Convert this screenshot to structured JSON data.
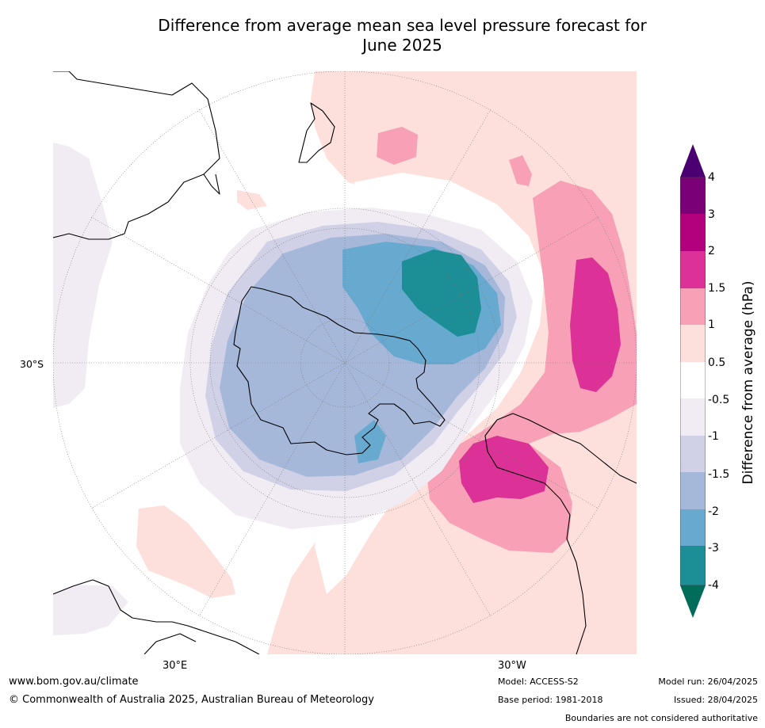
{
  "title_line1": "Difference from average mean sea level pressure forecast for",
  "title_line2": "June 2025",
  "labels": {
    "lat_30s": "30°S",
    "lon_30e": "30°E",
    "lon_30w": "30°W"
  },
  "colorbar": {
    "label": "Difference from average (hPa)",
    "ticks": [
      "4",
      "3",
      "2",
      "1.5",
      "1",
      "0.5",
      "-0.5",
      "-1",
      "-1.5",
      "-2",
      "-3",
      "-4"
    ],
    "bins": [
      {
        "range": "> 4",
        "color": "#4a0070"
      },
      {
        "range": "3 to 4",
        "color": "#7a0078"
      },
      {
        "range": "2 to 3",
        "color": "#b3007d"
      },
      {
        "range": "1.5 to 2",
        "color": "#dc3196"
      },
      {
        "range": "1 to 1.5",
        "color": "#f8a0b6"
      },
      {
        "range": "0.5 to 1",
        "color": "#fde0dc"
      },
      {
        "range": "-0.5 to 0.5",
        "color": "#ffffff"
      },
      {
        "range": "-1 to -0.5",
        "color": "#f1ecf3"
      },
      {
        "range": "-1.5 to -1",
        "color": "#d0d1e6"
      },
      {
        "range": "-2 to -1.5",
        "color": "#a6b8da"
      },
      {
        "range": "-3 to -2",
        "color": "#67a9cf"
      },
      {
        "range": "-4 to -3",
        "color": "#1c8f96"
      },
      {
        "range": "< -4",
        "color": "#016c59"
      }
    ]
  },
  "footer": {
    "url": "www.bom.gov.au/climate",
    "copyright": "© Commonwealth of Australia 2025, Australian Bureau of Meteorology",
    "model": "Model: ACCESS-S2",
    "base_period": "Base period: 1981-2018",
    "model_run": "Model run: 26/04/2025",
    "issued": "Issued: 28/04/2025",
    "disclaimer": "Boundaries are not considered authoritative"
  }
}
